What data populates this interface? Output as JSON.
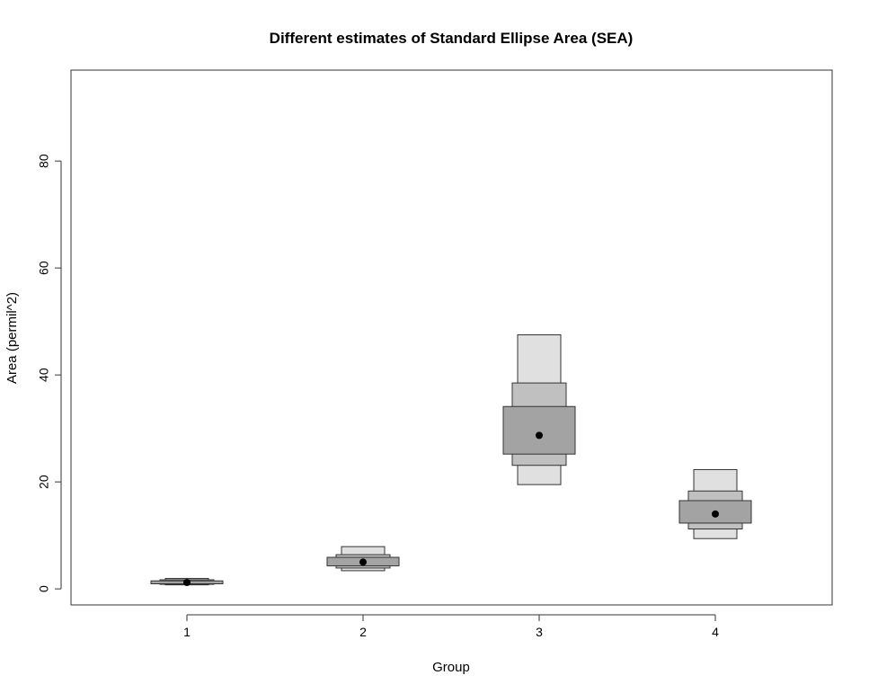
{
  "chart_data": {
    "type": "boxplot",
    "title": "Different estimates of Standard Ellipse Area (SEA)",
    "xlabel": "Group",
    "ylabel": "Area (permil^2)",
    "ylim": [
      -3,
      97
    ],
    "yticks": [
      0,
      20,
      40,
      60,
      80
    ],
    "categories": [
      "1",
      "2",
      "3",
      "4"
    ],
    "grid": false,
    "legend": "none",
    "colors": {
      "outer": "#e0e0e0",
      "middle": "#c0c0c0",
      "inner": "#a3a3a3",
      "stroke": "#333333",
      "mode": "#000000"
    },
    "groups": [
      {
        "group": "1",
        "mode": 1.2,
        "inner": [
          0.95,
          1.5
        ],
        "middle": [
          0.85,
          1.7
        ],
        "outer": [
          0.75,
          1.95
        ]
      },
      {
        "group": "2",
        "mode": 5.0,
        "inner": [
          4.3,
          5.9
        ],
        "middle": [
          3.9,
          6.4
        ],
        "outer": [
          3.4,
          7.9
        ]
      },
      {
        "group": "3",
        "mode": 28.7,
        "inner": [
          25.2,
          34.1
        ],
        "middle": [
          23.1,
          38.5
        ],
        "outer": [
          19.5,
          47.5
        ]
      },
      {
        "group": "4",
        "mode": 14.0,
        "inner": [
          12.3,
          16.5
        ],
        "middle": [
          11.2,
          18.3
        ],
        "outer": [
          9.4,
          22.3
        ]
      }
    ]
  }
}
